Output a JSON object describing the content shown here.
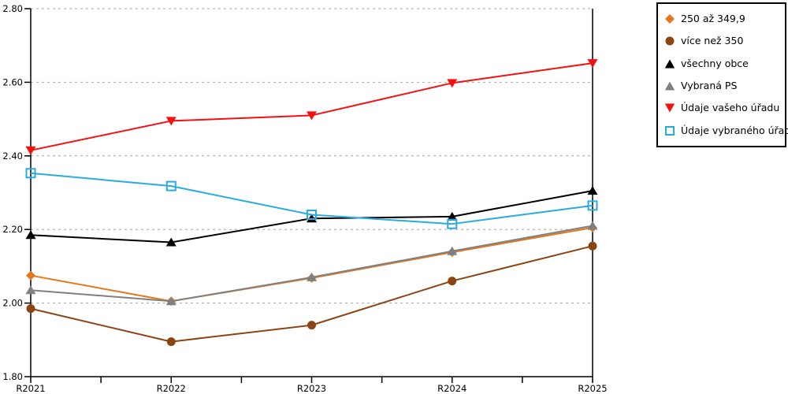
{
  "chart_data": {
    "type": "line",
    "title": "",
    "xlabel": "",
    "ylabel": "",
    "categories": [
      "R2021",
      "R2022",
      "R2023",
      "R2024",
      "R2025"
    ],
    "ylim": [
      1.8,
      2.8
    ],
    "ytick_step": 0.2,
    "ytick_labels": [
      "1.80",
      "2.00",
      "2.20",
      "2.40",
      "2.60",
      "2.80"
    ],
    "grid": "horizontal-dotted",
    "grid_color": "#A6A6A6",
    "axis_color": "#000000",
    "legend_position": "outside-top-right",
    "series": [
      {
        "name": "250 až 349,9",
        "color": "#E8761B",
        "marker": "diamond",
        "marker_filled": true,
        "values": [
          2.075,
          2.005,
          2.068,
          2.138,
          2.205
        ]
      },
      {
        "name": "více než 350",
        "color": "#8B4513",
        "marker": "circle",
        "marker_filled": true,
        "values": [
          1.985,
          1.895,
          1.94,
          2.06,
          2.155
        ]
      },
      {
        "name": "všechny obce",
        "color": "#000000",
        "marker": "triangle-up",
        "marker_filled": true,
        "values": [
          2.185,
          2.165,
          2.23,
          2.235,
          2.305
        ]
      },
      {
        "name": "Vybraná PS",
        "color": "#808080",
        "marker": "triangle-up",
        "marker_filled": true,
        "values": [
          2.035,
          2.005,
          2.07,
          2.141,
          2.21
        ]
      },
      {
        "name": "Údaje vašeho úřadu",
        "color": "#F50F0F",
        "marker": "triangle-down",
        "marker_filled": true,
        "values": [
          2.415,
          2.495,
          2.51,
          2.598,
          2.652
        ]
      },
      {
        "name": "Údaje vybraného úřadu",
        "color": "#29ABE2",
        "marker": "square-open",
        "marker_filled": false,
        "values": [
          2.353,
          2.318,
          2.24,
          2.215,
          2.265
        ]
      }
    ]
  }
}
